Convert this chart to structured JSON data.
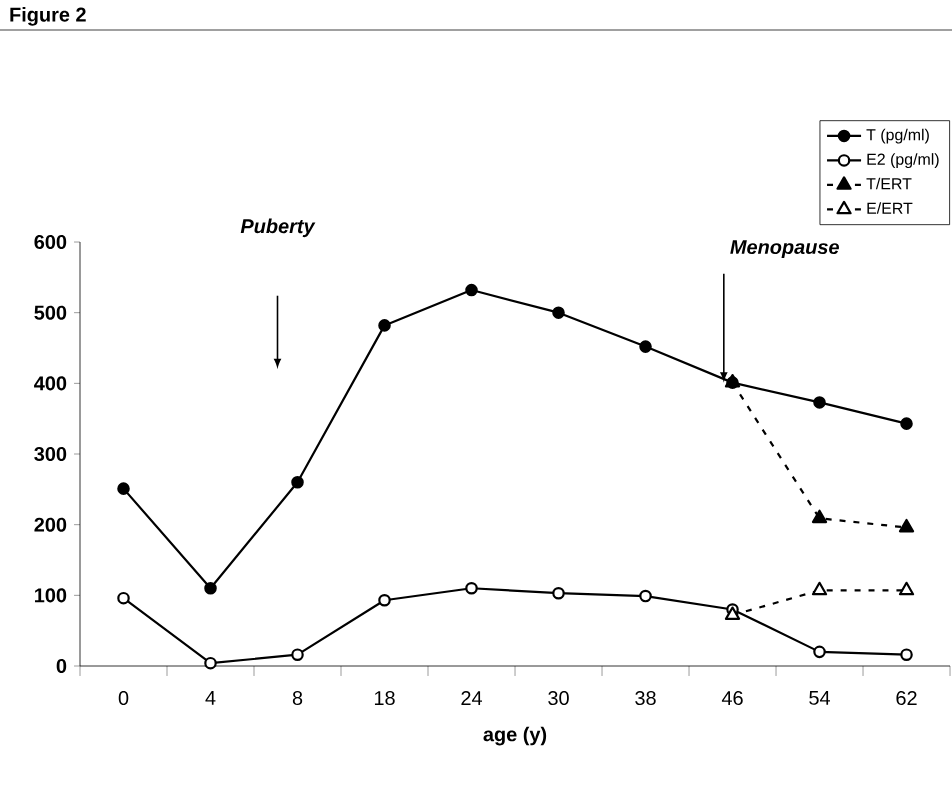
{
  "chart_data": {
    "type": "line",
    "title": "Figure 2",
    "xlabel": "age (y)",
    "categories": [
      "0",
      "4",
      "8",
      "18",
      "24",
      "30",
      "38",
      "46",
      "54",
      "62"
    ],
    "series": [
      {
        "name": "T (pg/ml)",
        "color": "#000000",
        "marker": "circle",
        "line_style": "solid",
        "values": [
          251,
          110,
          260,
          482,
          532,
          500,
          452,
          401,
          373,
          343
        ]
      },
      {
        "name": "E2 (pg/ml)",
        "color": "#000000",
        "marker": "circle",
        "line_style": "solid",
        "values": [
          96,
          4,
          16,
          93,
          110,
          103,
          99,
          80,
          20,
          16
        ]
      },
      {
        "name": "T/ERT",
        "color": "#000000",
        "marker": "triangle",
        "line_style": "dashed",
        "values": [
          null,
          null,
          null,
          null,
          null,
          null,
          null,
          401,
          209,
          196
        ]
      },
      {
        "name": "E/ERT",
        "color": "#000000",
        "marker": "triangle",
        "line_style": "dashed",
        "values": [
          null,
          null,
          null,
          null,
          null,
          null,
          null,
          72,
          107,
          107
        ]
      }
    ],
    "annotations": [
      "Puberty",
      {
        "text": "Menopause",
        "x": "46",
        "y": 401
      }
    ],
    "ylim": [
      0,
      600
    ],
    "yticks": [
      0,
      100,
      200,
      300,
      400,
      500,
      600
    ],
    "grid": false,
    "legend": "top right"
  }
}
